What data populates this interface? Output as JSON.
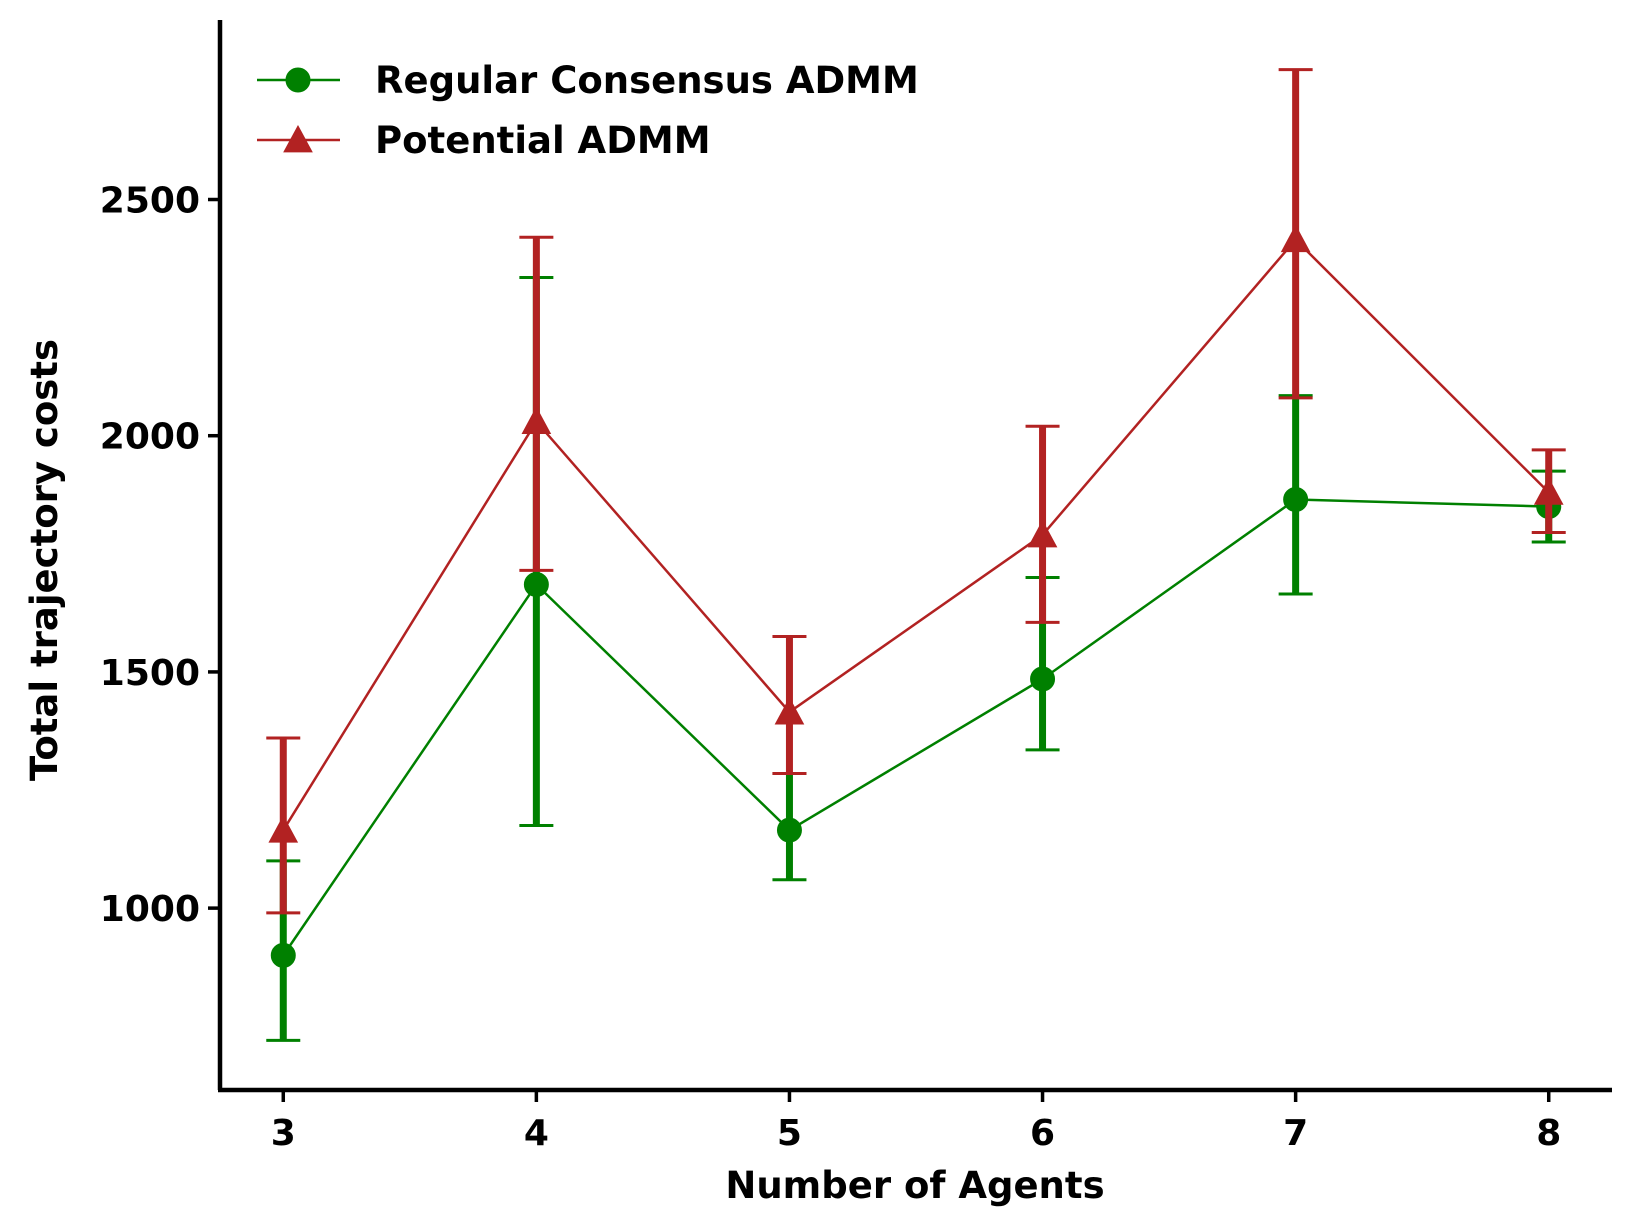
{
  "chart_data": {
    "type": "line",
    "title": "",
    "xlabel": "Number of Agents",
    "ylabel": "Total trajectory costs",
    "x": [
      3,
      4,
      5,
      6,
      7,
      8
    ],
    "xlim": [
      2.75,
      8.25
    ],
    "ylim": [
      615,
      2880
    ],
    "yticks": [
      1000,
      1500,
      2000,
      2500
    ],
    "xticks": [
      3,
      4,
      5,
      6,
      7,
      8
    ],
    "grid": false,
    "legend_position": "top-left",
    "series": [
      {
        "name": "Regular Consensus ADMM",
        "marker": "circle",
        "color": "#008000",
        "values": [
          900,
          1685,
          1165,
          1485,
          1865,
          1850
        ],
        "error_low": [
          720,
          1175,
          1060,
          1335,
          1665,
          1775
        ],
        "error_high": [
          1100,
          2335,
          1285,
          1700,
          2085,
          1925
        ]
      },
      {
        "name": "Potential ADMM",
        "marker": "triangle",
        "color": "#b22222",
        "values": [
          1165,
          2030,
          1415,
          1790,
          2415,
          1880
        ],
        "error_low": [
          990,
          1715,
          1285,
          1605,
          2080,
          1795
        ],
        "error_high": [
          1360,
          2420,
          1575,
          2020,
          2775,
          1970
        ]
      }
    ]
  }
}
